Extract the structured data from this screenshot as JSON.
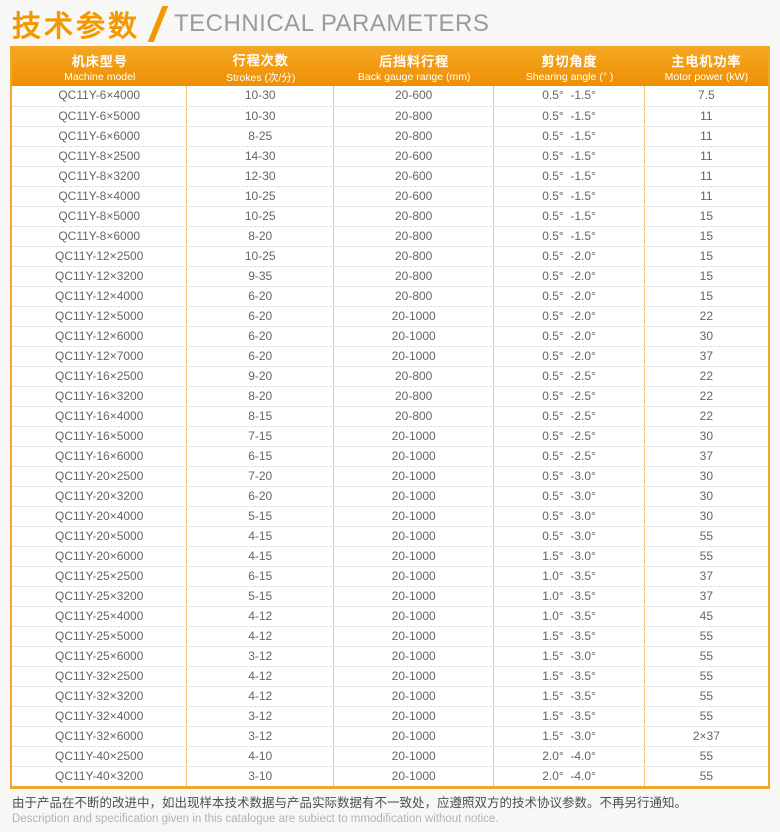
{
  "page": {
    "title_cn": "技术参数",
    "title_en": "TECHNICAL PARAMETERS",
    "accent_color": "#f39800",
    "header_bg_color": "#f0950f",
    "footer_cn": "由于产品在不断的改进中，如出现样本技术数据与产品实际数据有不一致处，应遵照双方的技术协议参数。不再另行通知。",
    "footer_en": "Description and specification given in this catalogue are subiect to mmodification without notice."
  },
  "table": {
    "columns": [
      {
        "key": "machine-model",
        "cn": "机床型号",
        "en": "Machine model"
      },
      {
        "key": "strokes",
        "cn": "行程次数",
        "en": "Strokes (次/分)"
      },
      {
        "key": "back-gauge-range",
        "cn": "后挡料行程",
        "en": "Back gauge range (mm)"
      },
      {
        "key": "shearing-angle",
        "cn": "剪切角度",
        "en": "Shearing angle (° )"
      },
      {
        "key": "motor-power",
        "cn": "主电机功率",
        "en": "Motor power (kW)"
      }
    ],
    "rows": [
      [
        "QC11Y-6×4000",
        "10-30",
        "20-600",
        "0.5°  -1.5°",
        "7.5"
      ],
      [
        "QC11Y-6×5000",
        "10-30",
        "20-800",
        "0.5°  -1.5°",
        "11"
      ],
      [
        "QC11Y-6×6000",
        "8-25",
        "20-800",
        "0.5°  -1.5°",
        "11"
      ],
      [
        "QC11Y-8×2500",
        "14-30",
        "20-600",
        "0.5°  -1.5°",
        "11"
      ],
      [
        "QC11Y-8×3200",
        "12-30",
        "20-600",
        "0.5°  -1.5°",
        "11"
      ],
      [
        "QC11Y-8×4000",
        "10-25",
        "20-600",
        "0.5°  -1.5°",
        "11"
      ],
      [
        "QC11Y-8×5000",
        "10-25",
        "20-800",
        "0.5°  -1.5°",
        "15"
      ],
      [
        "QC11Y-8×6000",
        "8-20",
        "20-800",
        "0.5°  -1.5°",
        "15"
      ],
      [
        "QC11Y-12×2500",
        "10-25",
        "20-800",
        "0.5°  -2.0°",
        "15"
      ],
      [
        "QC11Y-12×3200",
        "9-35",
        "20-800",
        "0.5°  -2.0°",
        "15"
      ],
      [
        "QC11Y-12×4000",
        "6-20",
        "20-800",
        "0.5°  -2.0°",
        "15"
      ],
      [
        "QC11Y-12×5000",
        "6-20",
        "20-1000",
        "0.5°  -2.0°",
        "22"
      ],
      [
        "QC11Y-12×6000",
        "6-20",
        "20-1000",
        "0.5°  -2.0°",
        "30"
      ],
      [
        "QC11Y-12×7000",
        "6-20",
        "20-1000",
        "0.5°  -2.0°",
        "37"
      ],
      [
        "QC11Y-16×2500",
        "9-20",
        "20-800",
        "0.5°  -2.5°",
        "22"
      ],
      [
        "QC11Y-16×3200",
        "8-20",
        "20-800",
        "0.5°  -2.5°",
        "22"
      ],
      [
        "QC11Y-16×4000",
        "8-15",
        "20-800",
        "0.5°  -2.5°",
        "22"
      ],
      [
        "QC11Y-16×5000",
        "7-15",
        "20-1000",
        "0.5°  -2.5°",
        "30"
      ],
      [
        "QC11Y-16×6000",
        "6-15",
        "20-1000",
        "0.5°  -2.5°",
        "37"
      ],
      [
        "QC11Y-20×2500",
        "7-20",
        "20-1000",
        "0.5°  -3.0°",
        "30"
      ],
      [
        "QC11Y-20×3200",
        "6-20",
        "20-1000",
        "0.5°  -3.0°",
        "30"
      ],
      [
        "QC11Y-20×4000",
        "5-15",
        "20-1000",
        "0.5°  -3.0°",
        "30"
      ],
      [
        "QC11Y-20×5000",
        "4-15",
        "20-1000",
        "0.5°  -3.0°",
        "55"
      ],
      [
        "QC11Y-20×6000",
        "4-15",
        "20-1000",
        "1.5°  -3.0°",
        "55"
      ],
      [
        "QC11Y-25×2500",
        "6-15",
        "20-1000",
        "1.0°  -3.5°",
        "37"
      ],
      [
        "QC11Y-25×3200",
        "5-15",
        "20-1000",
        "1.0°  -3.5°",
        "37"
      ],
      [
        "QC11Y-25×4000",
        "4-12",
        "20-1000",
        "1.0°  -3.5°",
        "45"
      ],
      [
        "QC11Y-25×5000",
        "4-12",
        "20-1000",
        "1.5°  -3.5°",
        "55"
      ],
      [
        "QC11Y-25×6000",
        "3-12",
        "20-1000",
        "1.5°  -3.0°",
        "55"
      ],
      [
        "QC11Y-32×2500",
        "4-12",
        "20-1000",
        "1.5°  -3.5°",
        "55"
      ],
      [
        "QC11Y-32×3200",
        "4-12",
        "20-1000",
        "1.5°  -3.5°",
        "55"
      ],
      [
        "QC11Y-32×4000",
        "3-12",
        "20-1000",
        "1.5°  -3.5°",
        "55"
      ],
      [
        "QC11Y-32×6000",
        "3-12",
        "20-1000",
        "1.5°  -3.0°",
        "2×37"
      ],
      [
        "QC11Y-40×2500",
        "4-10",
        "20-1000",
        "2.0°  -4.0°",
        "55"
      ],
      [
        "QC11Y-40×3200",
        "3-10",
        "20-1000",
        "2.0°  -4.0°",
        "55"
      ]
    ]
  }
}
